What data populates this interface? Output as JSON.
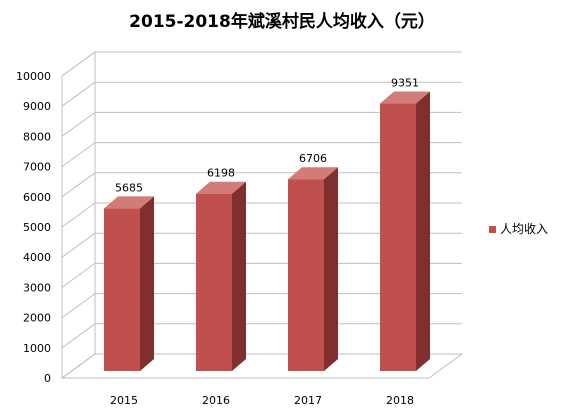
{
  "chart_data": {
    "type": "bar",
    "title": "2015-2018年斌溪村民人均收入（元）",
    "categories": [
      "2015",
      "2016",
      "2017",
      "2018"
    ],
    "series": [
      {
        "name": "人均收入",
        "values": [
          5685,
          6198,
          6706,
          9351
        ]
      }
    ],
    "ylim": [
      0,
      10000
    ],
    "yticks": [
      0,
      1000,
      2000,
      3000,
      4000,
      5000,
      6000,
      7000,
      8000,
      9000,
      10000
    ],
    "xlabel": "",
    "ylabel": "",
    "grid": true,
    "legend_position": "right",
    "style": "3d-column",
    "colors": {
      "bar_front": "#C0504D",
      "bar_side": "#7F2F2D",
      "bar_top": "#D27B78",
      "grid": "#BFBFBF",
      "floor": "#BFBFBF",
      "text": "#000000"
    }
  }
}
